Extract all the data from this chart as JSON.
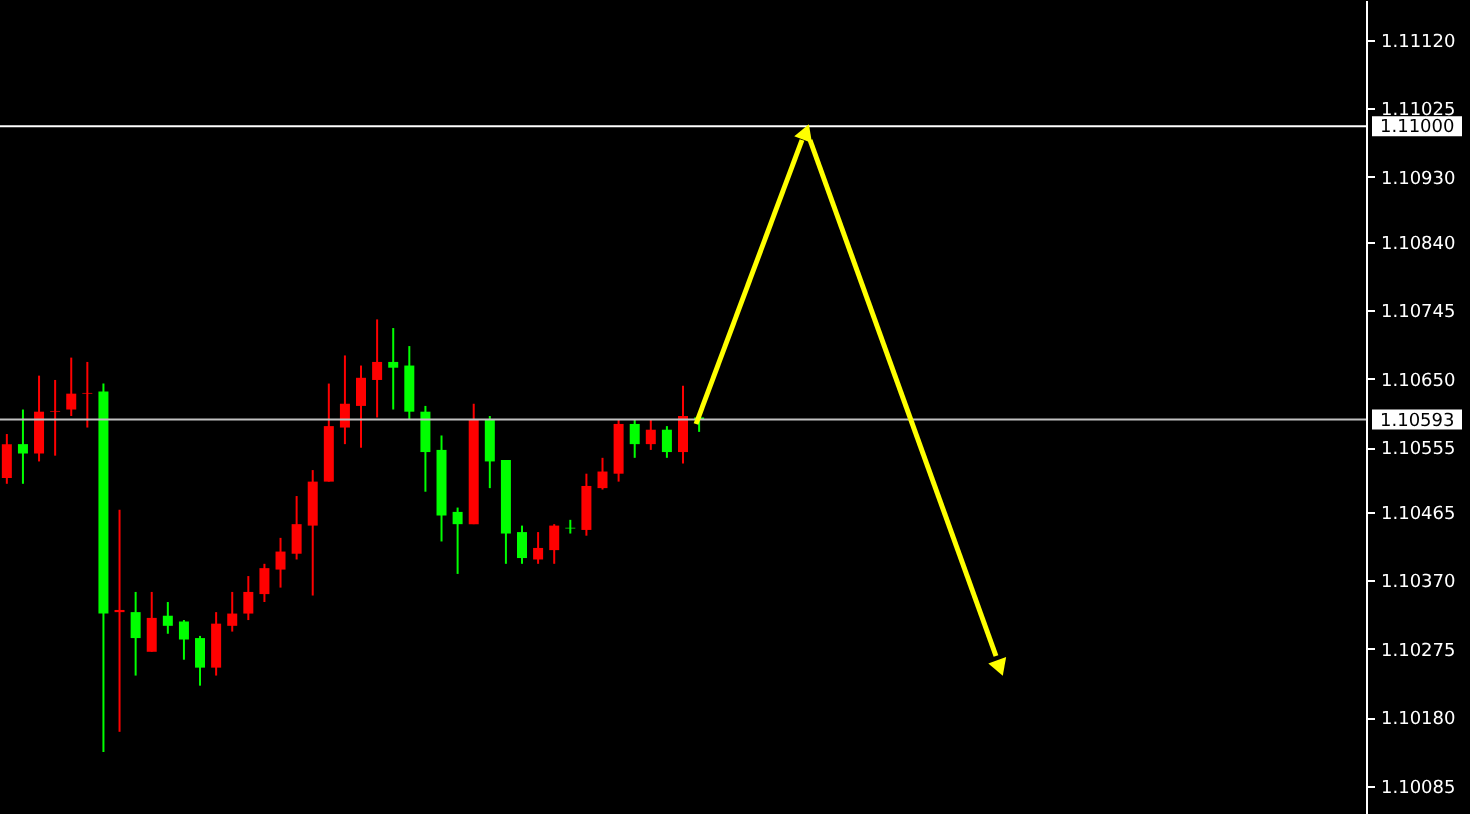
{
  "chart_data": {
    "type": "candlestick",
    "categories": [
      null,
      null,
      null,
      null,
      null,
      null,
      null,
      null,
      null,
      null,
      null,
      null,
      null,
      null,
      null,
      null,
      null,
      null,
      null,
      null,
      null,
      null,
      null,
      null,
      null,
      null,
      null,
      null,
      null,
      null,
      null,
      null,
      null,
      null,
      null,
      null,
      null,
      null,
      null,
      null,
      null,
      null,
      null,
      null,
      null,
      null,
      null,
      null,
      null,
      null,
      null,
      null,
      null,
      null,
      null,
      null,
      null,
      null,
      null,
      null,
      null,
      null,
      null,
      null,
      null,
      null,
      null,
      null,
      null,
      null,
      null,
      null,
      null,
      null,
      null,
      null,
      null,
      null,
      null,
      null,
      null,
      null,
      null,
      null,
      null
    ],
    "ohlc": [
      [
        1.10512,
        1.10573,
        1.10504,
        1.10559
      ],
      [
        1.10559,
        1.10607,
        1.10504,
        1.10546
      ],
      [
        1.10546,
        1.10654,
        1.10535,
        1.10604
      ],
      [
        1.10604,
        1.10648,
        1.10543,
        1.10605
      ],
      [
        1.10607,
        1.10679,
        1.10598,
        1.10629
      ],
      [
        1.10629,
        1.10673,
        1.10582,
        1.1063
      ],
      [
        1.10632,
        1.10643,
        1.10132,
        1.10324
      ],
      [
        1.10326,
        1.10468,
        1.1016,
        1.10329
      ],
      [
        1.10326,
        1.10354,
        1.10238,
        1.1029
      ],
      [
        1.10271,
        1.10354,
        1.10271,
        1.10318
      ],
      [
        1.10321,
        1.1034,
        1.10296,
        1.10307
      ],
      [
        1.10313,
        1.10315,
        1.1026,
        1.10288
      ],
      [
        1.1029,
        1.10293,
        1.10224,
        1.10249
      ],
      [
        1.10249,
        1.10326,
        1.10238,
        1.1031
      ],
      [
        1.10307,
        1.10354,
        1.10299,
        1.10324
      ],
      [
        1.10324,
        1.10376,
        1.10315,
        1.10354
      ],
      [
        1.10351,
        1.10393,
        1.1034,
        1.10387
      ],
      [
        1.10385,
        1.10429,
        1.1036,
        1.1041
      ],
      [
        1.10407,
        1.10487,
        1.10399,
        1.10448
      ],
      [
        1.10446,
        1.10523,
        1.10349,
        1.10507
      ],
      [
        1.10507,
        1.10643,
        1.10507,
        1.10584
      ],
      [
        1.10582,
        1.10682,
        1.10559,
        1.10615
      ],
      [
        1.10612,
        1.10668,
        1.10554,
        1.10651
      ],
      [
        1.10648,
        1.10732,
        1.10596,
        1.10673
      ],
      [
        1.10673,
        1.1072,
        1.10607,
        1.10665
      ],
      [
        1.10668,
        1.10695,
        1.10593,
        1.10604
      ],
      [
        1.10604,
        1.10612,
        1.10493,
        1.10548
      ],
      [
        1.10551,
        1.10571,
        1.10424,
        1.1046
      ],
      [
        1.10465,
        1.10471,
        1.10379,
        1.10448
      ],
      [
        1.10448,
        1.10615,
        1.10448,
        1.10593
      ],
      [
        1.10593,
        1.10598,
        1.10498,
        1.10535
      ],
      [
        1.10537,
        1.10537,
        1.10393,
        1.10435
      ],
      [
        1.10437,
        1.10446,
        1.10393,
        1.10401
      ],
      [
        1.10399,
        1.10437,
        1.10393,
        1.10415
      ],
      [
        1.10412,
        1.10448,
        1.10393,
        1.10446
      ],
      [
        1.10443,
        1.10454,
        1.10435,
        1.10442
      ],
      [
        1.1044,
        1.10518,
        1.10432,
        1.10501
      ],
      [
        1.10498,
        1.1054,
        1.10496,
        1.10521
      ],
      [
        1.10518,
        1.10593,
        1.10507,
        1.10587
      ],
      [
        1.10587,
        1.10593,
        1.1054,
        1.10559
      ],
      [
        1.10559,
        1.10593,
        1.10551,
        1.10579
      ],
      [
        1.10579,
        1.10584,
        1.1054,
        1.10548
      ],
      [
        1.10548,
        1.1064,
        1.10532,
        1.10598
      ],
      [
        1.10596,
        1.10598,
        1.10576,
        1.10593
      ],
      null,
      null,
      null,
      null,
      null,
      null,
      null,
      null,
      null,
      null,
      null,
      null,
      null,
      null,
      null,
      null,
      null,
      null,
      null,
      null,
      null,
      null,
      null,
      null,
      null,
      null,
      null,
      null,
      null,
      null,
      null,
      null,
      null,
      null,
      null,
      null,
      null,
      null,
      null,
      null,
      null
    ],
    "colors": [
      "#ff0000",
      "#00ff00",
      "#ff0000",
      "#ff0000",
      "#ff0000",
      "#ff0000",
      "#00ff00",
      "#ff0000",
      "#00ff00",
      "#ff0000",
      "#00ff00",
      "#00ff00",
      "#00ff00",
      "#ff0000",
      "#ff0000",
      "#ff0000",
      "#ff0000",
      "#ff0000",
      "#ff0000",
      "#ff0000",
      "#ff0000",
      "#ff0000",
      "#ff0000",
      "#ff0000",
      "#00ff00",
      "#00ff00",
      "#00ff00",
      "#00ff00",
      "#00ff00",
      "#ff0000",
      "#00ff00",
      "#00ff00",
      "#00ff00",
      "#ff0000",
      "#ff0000",
      "#00ff00",
      "#ff0000",
      "#ff0000",
      "#ff0000",
      "#00ff00",
      "#ff0000",
      "#00ff00",
      "#ff0000",
      "#00ff00",
      null,
      null,
      null,
      null,
      null,
      null,
      null,
      null,
      null,
      null,
      null,
      null,
      null,
      null,
      null,
      null,
      null,
      null,
      null,
      null,
      null,
      null,
      null,
      null,
      null,
      null,
      null,
      null,
      null,
      null,
      null,
      null,
      null,
      null,
      null,
      null,
      null,
      null,
      null,
      null,
      null
    ],
    "ylim": [
      1.10046,
      1.11175
    ],
    "yticks": [
      {
        "value": 1.1112,
        "label": "1.11120"
      },
      {
        "value": 1.11025,
        "label": "1.11025"
      },
      {
        "value": 1.1093,
        "label": "1.10930"
      },
      {
        "value": 1.1084,
        "label": "1.10840"
      },
      {
        "value": 1.10745,
        "label": "1.10745"
      },
      {
        "value": 1.1065,
        "label": "1.10650"
      },
      {
        "value": 1.10555,
        "label": "1.10555"
      },
      {
        "value": 1.10465,
        "label": "1.10465"
      },
      {
        "value": 1.1037,
        "label": "1.10370"
      },
      {
        "value": 1.10275,
        "label": "1.10275"
      },
      {
        "value": 1.1018,
        "label": "1.10180"
      },
      {
        "value": 1.10085,
        "label": "1.10085"
      }
    ],
    "ref_lines": [
      {
        "axis": "y",
        "value": 1.11,
        "label": "1.11000",
        "color": "#ffffff"
      },
      {
        "axis": "y",
        "value": 1.10593,
        "label": "1.10593",
        "color": "#c0c0c0"
      }
    ],
    "grid": false,
    "tick_labels": "y"
  }
}
